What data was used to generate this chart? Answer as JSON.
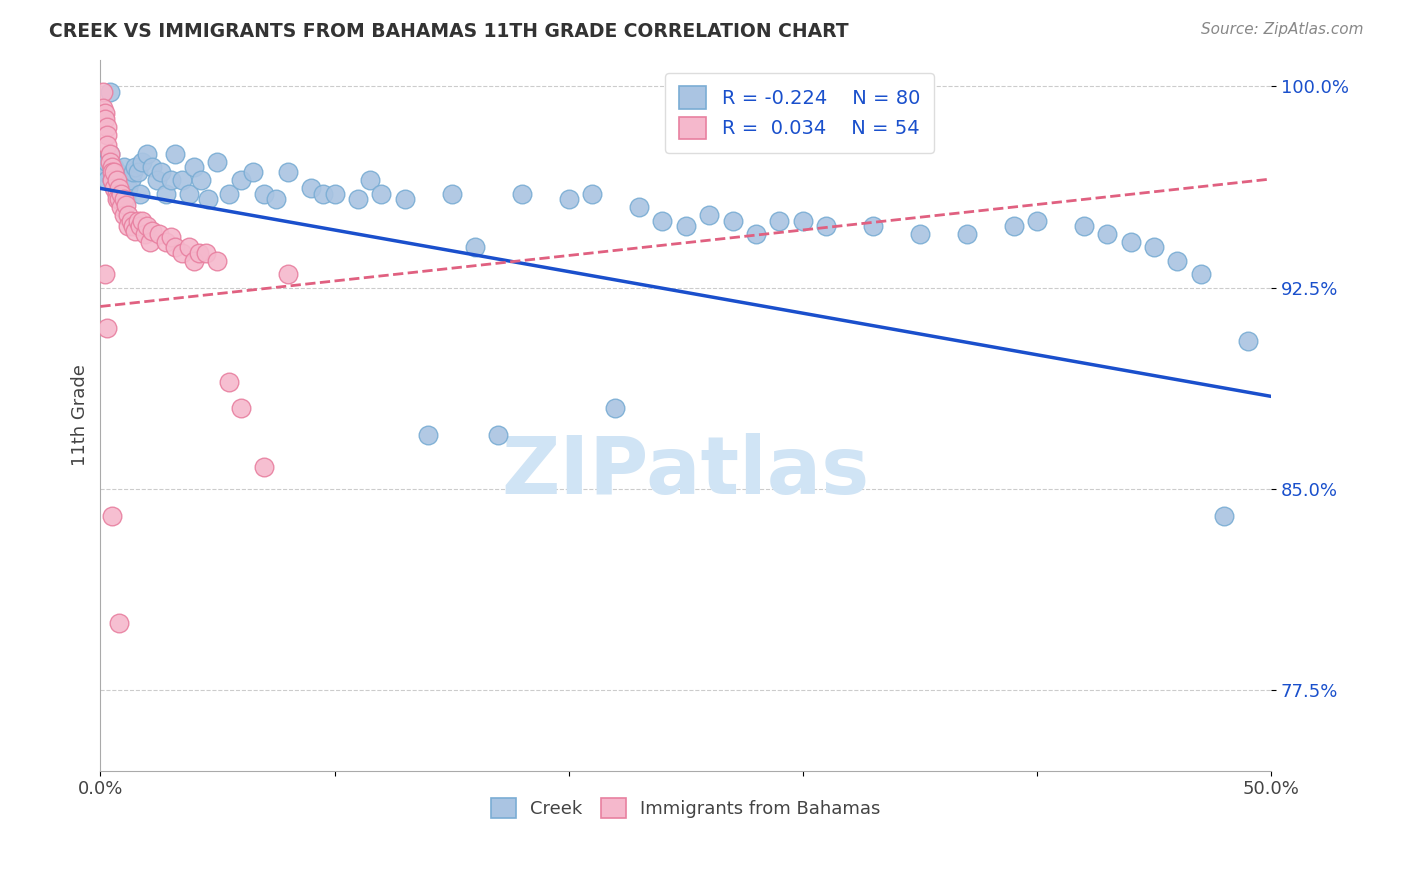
{
  "title": "CREEK VS IMMIGRANTS FROM BAHAMAS 11TH GRADE CORRELATION CHART",
  "source": "Source: ZipAtlas.com",
  "ylabel": "11th Grade",
  "xlim": [
    0.0,
    0.5
  ],
  "ylim": [
    0.745,
    1.01
  ],
  "xtick_labels": [
    "0.0%",
    "",
    "",
    "",
    "",
    "50.0%"
  ],
  "xtick_vals": [
    0.0,
    0.1,
    0.2,
    0.3,
    0.4,
    0.5
  ],
  "ytick_labels": [
    "77.5%",
    "85.0%",
    "92.5%",
    "100.0%"
  ],
  "ytick_vals": [
    0.775,
    0.85,
    0.925,
    1.0
  ],
  "creek_R": -0.224,
  "creek_N": 80,
  "bahamas_R": 0.034,
  "bahamas_N": 54,
  "creek_color": "#aac4e2",
  "creek_edge_color": "#7aadd4",
  "bahamas_color": "#f5b8cc",
  "bahamas_edge_color": "#e880a0",
  "creek_line_color": "#1a4fcc",
  "bahamas_line_color": "#e06080",
  "legend_R_color": "#1a50cc",
  "watermark_color": "#d0e4f5",
  "background_color": "#ffffff",
  "creek_x": [
    0.001,
    0.002,
    0.003,
    0.003,
    0.004,
    0.004,
    0.005,
    0.005,
    0.006,
    0.006,
    0.007,
    0.007,
    0.008,
    0.009,
    0.01,
    0.01,
    0.011,
    0.012,
    0.013,
    0.014,
    0.015,
    0.016,
    0.017,
    0.018,
    0.02,
    0.022,
    0.024,
    0.026,
    0.028,
    0.03,
    0.032,
    0.035,
    0.038,
    0.04,
    0.043,
    0.046,
    0.05,
    0.055,
    0.06,
    0.065,
    0.07,
    0.075,
    0.08,
    0.09,
    0.095,
    0.1,
    0.11,
    0.115,
    0.12,
    0.13,
    0.14,
    0.15,
    0.16,
    0.17,
    0.18,
    0.2,
    0.21,
    0.22,
    0.23,
    0.24,
    0.25,
    0.26,
    0.27,
    0.28,
    0.29,
    0.3,
    0.31,
    0.33,
    0.35,
    0.37,
    0.39,
    0.4,
    0.42,
    0.43,
    0.44,
    0.45,
    0.46,
    0.47,
    0.48,
    0.49
  ],
  "creek_y": [
    0.97,
    0.968,
    0.965,
    0.972,
    0.998,
    0.975,
    0.97,
    0.965,
    0.97,
    0.965,
    0.968,
    0.96,
    0.962,
    0.96,
    0.97,
    0.96,
    0.958,
    0.962,
    0.965,
    0.968,
    0.97,
    0.968,
    0.96,
    0.972,
    0.975,
    0.97,
    0.965,
    0.968,
    0.96,
    0.965,
    0.975,
    0.965,
    0.96,
    0.97,
    0.965,
    0.958,
    0.972,
    0.96,
    0.965,
    0.968,
    0.96,
    0.958,
    0.968,
    0.962,
    0.96,
    0.96,
    0.958,
    0.965,
    0.96,
    0.958,
    0.87,
    0.96,
    0.94,
    0.87,
    0.96,
    0.958,
    0.96,
    0.88,
    0.955,
    0.95,
    0.948,
    0.952,
    0.95,
    0.945,
    0.95,
    0.95,
    0.948,
    0.948,
    0.945,
    0.945,
    0.948,
    0.95,
    0.948,
    0.945,
    0.942,
    0.94,
    0.935,
    0.93,
    0.84,
    0.905
  ],
  "bahamas_x": [
    0.001,
    0.001,
    0.002,
    0.002,
    0.003,
    0.003,
    0.003,
    0.004,
    0.004,
    0.005,
    0.005,
    0.005,
    0.006,
    0.006,
    0.007,
    0.007,
    0.007,
    0.008,
    0.008,
    0.009,
    0.009,
    0.01,
    0.01,
    0.011,
    0.012,
    0.012,
    0.013,
    0.014,
    0.015,
    0.016,
    0.017,
    0.018,
    0.019,
    0.02,
    0.021,
    0.022,
    0.025,
    0.028,
    0.03,
    0.032,
    0.035,
    0.038,
    0.04,
    0.042,
    0.045,
    0.05,
    0.055,
    0.06,
    0.07,
    0.08,
    0.002,
    0.003,
    0.005,
    0.008
  ],
  "bahamas_y": [
    0.998,
    0.992,
    0.99,
    0.988,
    0.985,
    0.982,
    0.978,
    0.975,
    0.972,
    0.97,
    0.968,
    0.965,
    0.968,
    0.962,
    0.965,
    0.96,
    0.958,
    0.962,
    0.958,
    0.96,
    0.955,
    0.958,
    0.952,
    0.956,
    0.952,
    0.948,
    0.95,
    0.948,
    0.946,
    0.95,
    0.948,
    0.95,
    0.945,
    0.948,
    0.942,
    0.946,
    0.945,
    0.942,
    0.944,
    0.94,
    0.938,
    0.94,
    0.935,
    0.938,
    0.938,
    0.935,
    0.89,
    0.88,
    0.858,
    0.93,
    0.93,
    0.91,
    0.84,
    0.8
  ]
}
